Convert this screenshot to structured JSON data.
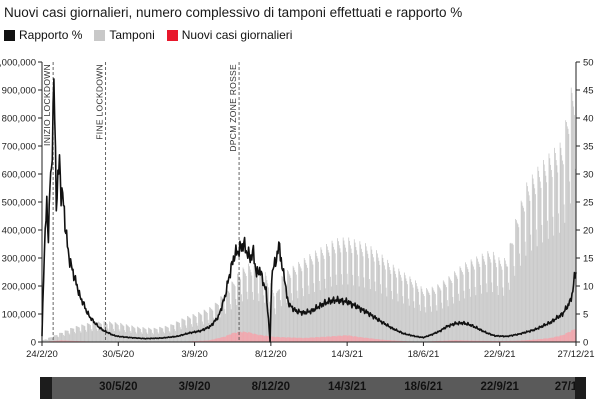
{
  "chart_data": {
    "type": "bar+line",
    "title": "Nuovi casi giornalieri, numero complessivo di tamponi effettuati e rapporto %",
    "legend": [
      {
        "name": "Rapporto %",
        "color": "#111111"
      },
      {
        "name": "Tamponi",
        "color": "#c8c8c8"
      },
      {
        "name": "Nuovi casi giornalieri",
        "color": "#e8172b"
      }
    ],
    "y_left": {
      "range": [
        0,
        1000000
      ],
      "ticks": [
        0,
        100000,
        200000,
        300000,
        400000,
        500000,
        600000,
        700000,
        800000,
        900000,
        1000000
      ],
      "tick_labels": [
        "0",
        "100,000",
        "200,000",
        "300,000",
        "400,000",
        "500,000",
        "600,000",
        "700,000",
        "800,000",
        "900,000",
        "1,000,000"
      ]
    },
    "y_right": {
      "range": [
        0,
        50
      ],
      "ticks": [
        0,
        5,
        10,
        15,
        20,
        25,
        30,
        35,
        40,
        45,
        50
      ],
      "tick_labels": [
        "0",
        "5",
        "10",
        "15",
        "20",
        "25",
        "30",
        "35",
        "40",
        "45",
        "50"
      ]
    },
    "x_range_days": [
      0,
      672
    ],
    "x_ticks": [
      {
        "label": "24/2/20",
        "day": 0
      },
      {
        "label": "30/5/20",
        "day": 96
      },
      {
        "label": "3/9/20",
        "day": 192
      },
      {
        "label": "8/12/20",
        "day": 288
      },
      {
        "label": "14/3/21",
        "day": 384
      },
      {
        "label": "18/6/21",
        "day": 480
      },
      {
        "label": "22/9/21",
        "day": 576
      },
      {
        "label": "27/12/21",
        "day": 672
      }
    ],
    "annotations": [
      {
        "label": "INIZIO LOCKDOWN",
        "day": 14
      },
      {
        "label": "FINE LOCKDOWN",
        "day": 80
      },
      {
        "label": "DPCM ZONE ROSSE",
        "day": 248
      }
    ],
    "tamponi_envelope": [
      [
        0,
        5000
      ],
      [
        20,
        30000
      ],
      [
        40,
        55000
      ],
      [
        60,
        70000
      ],
      [
        80,
        75000
      ],
      [
        96,
        70000
      ],
      [
        120,
        55000
      ],
      [
        140,
        50000
      ],
      [
        160,
        60000
      ],
      [
        180,
        90000
      ],
      [
        200,
        110000
      ],
      [
        215,
        130000
      ],
      [
        230,
        180000
      ],
      [
        240,
        220000
      ],
      [
        250,
        260000
      ],
      [
        260,
        280000
      ],
      [
        270,
        270000
      ],
      [
        280,
        255000
      ],
      [
        288,
        210000
      ],
      [
        295,
        175000
      ],
      [
        300,
        230000
      ],
      [
        310,
        260000
      ],
      [
        325,
        290000
      ],
      [
        340,
        320000
      ],
      [
        355,
        345000
      ],
      [
        370,
        370000
      ],
      [
        384,
        375000
      ],
      [
        395,
        365000
      ],
      [
        410,
        350000
      ],
      [
        425,
        320000
      ],
      [
        440,
        280000
      ],
      [
        455,
        250000
      ],
      [
        470,
        220000
      ],
      [
        480,
        190000
      ],
      [
        495,
        200000
      ],
      [
        510,
        230000
      ],
      [
        530,
        280000
      ],
      [
        550,
        310000
      ],
      [
        565,
        330000
      ],
      [
        576,
        300000
      ],
      [
        585,
        300000
      ],
      [
        595,
        430000
      ],
      [
        610,
        570000
      ],
      [
        625,
        630000
      ],
      [
        640,
        680000
      ],
      [
        655,
        720000
      ],
      [
        665,
        900000
      ],
      [
        672,
        960000
      ]
    ],
    "casi_envelope": [
      [
        0,
        200
      ],
      [
        15,
        4000
      ],
      [
        25,
        6000
      ],
      [
        40,
        4000
      ],
      [
        60,
        2000
      ],
      [
        80,
        1000
      ],
      [
        96,
        600
      ],
      [
        140,
        500
      ],
      [
        180,
        1500
      ],
      [
        210,
        6000
      ],
      [
        230,
        20000
      ],
      [
        240,
        33000
      ],
      [
        250,
        38000
      ],
      [
        260,
        36000
      ],
      [
        270,
        28000
      ],
      [
        288,
        20000
      ],
      [
        300,
        18000
      ],
      [
        330,
        15000
      ],
      [
        360,
        20000
      ],
      [
        384,
        25000
      ],
      [
        400,
        18000
      ],
      [
        430,
        8000
      ],
      [
        460,
        2500
      ],
      [
        480,
        1000
      ],
      [
        500,
        4000
      ],
      [
        520,
        6500
      ],
      [
        540,
        5000
      ],
      [
        560,
        4000
      ],
      [
        580,
        3500
      ],
      [
        600,
        5000
      ],
      [
        620,
        9000
      ],
      [
        640,
        15000
      ],
      [
        655,
        25000
      ],
      [
        665,
        40000
      ],
      [
        672,
        50000
      ]
    ],
    "rapporto_pct": [
      [
        0,
        1
      ],
      [
        2,
        12
      ],
      [
        4,
        20
      ],
      [
        6,
        24
      ],
      [
        8,
        19
      ],
      [
        10,
        28
      ],
      [
        12,
        30
      ],
      [
        14,
        42
      ],
      [
        15,
        46
      ],
      [
        16,
        40
      ],
      [
        18,
        25
      ],
      [
        20,
        29
      ],
      [
        22,
        32
      ],
      [
        24,
        27
      ],
      [
        26,
        26
      ],
      [
        28,
        23
      ],
      [
        30,
        20
      ],
      [
        33,
        16
      ],
      [
        36,
        14
      ],
      [
        40,
        12
      ],
      [
        44,
        10
      ],
      [
        48,
        8
      ],
      [
        52,
        7
      ],
      [
        56,
        5.5
      ],
      [
        60,
        4.5
      ],
      [
        66,
        3.5
      ],
      [
        72,
        2.6
      ],
      [
        78,
        2
      ],
      [
        84,
        1.6
      ],
      [
        90,
        1.2
      ],
      [
        96,
        1
      ],
      [
        110,
        0.8
      ],
      [
        130,
        0.6
      ],
      [
        150,
        0.7
      ],
      [
        170,
        1
      ],
      [
        185,
        1.6
      ],
      [
        200,
        2
      ],
      [
        212,
        2.8
      ],
      [
        222,
        4.5
      ],
      [
        230,
        8
      ],
      [
        236,
        12
      ],
      [
        242,
        15.5
      ],
      [
        248,
        16.5
      ],
      [
        254,
        17.5
      ],
      [
        258,
        16
      ],
      [
        262,
        15
      ],
      [
        266,
        16
      ],
      [
        270,
        12
      ],
      [
        274,
        13
      ],
      [
        278,
        11
      ],
      [
        282,
        9
      ],
      [
        285,
        4
      ],
      [
        287,
        0
      ],
      [
        289,
        12
      ],
      [
        293,
        14
      ],
      [
        296,
        15.5
      ],
      [
        299,
        17.5
      ],
      [
        302,
        13
      ],
      [
        305,
        12
      ],
      [
        308,
        8
      ],
      [
        312,
        6.5
      ],
      [
        320,
        5.5
      ],
      [
        330,
        5.2
      ],
      [
        340,
        5.6
      ],
      [
        350,
        6.5
      ],
      [
        360,
        7.2
      ],
      [
        370,
        7.5
      ],
      [
        384,
        7.2
      ],
      [
        395,
        6.4
      ],
      [
        410,
        5.2
      ],
      [
        425,
        3.8
      ],
      [
        440,
        2.5
      ],
      [
        455,
        1.5
      ],
      [
        470,
        1
      ],
      [
        480,
        0.8
      ],
      [
        490,
        1.3
      ],
      [
        500,
        1.9
      ],
      [
        510,
        2.8
      ],
      [
        520,
        3.3
      ],
      [
        530,
        3.4
      ],
      [
        540,
        3
      ],
      [
        550,
        2.3
      ],
      [
        560,
        1.6
      ],
      [
        570,
        1.1
      ],
      [
        585,
        1
      ],
      [
        600,
        1.4
      ],
      [
        620,
        2.2
      ],
      [
        640,
        3.5
      ],
      [
        655,
        5
      ],
      [
        664,
        7
      ],
      [
        668,
        9
      ],
      [
        670,
        11.5
      ],
      [
        672,
        13
      ]
    ]
  },
  "navigator": {
    "labels": [
      "30/5/20",
      "3/9/20",
      "8/12/20",
      "14/3/21",
      "18/6/21",
      "22/9/21",
      "27/1"
    ]
  }
}
